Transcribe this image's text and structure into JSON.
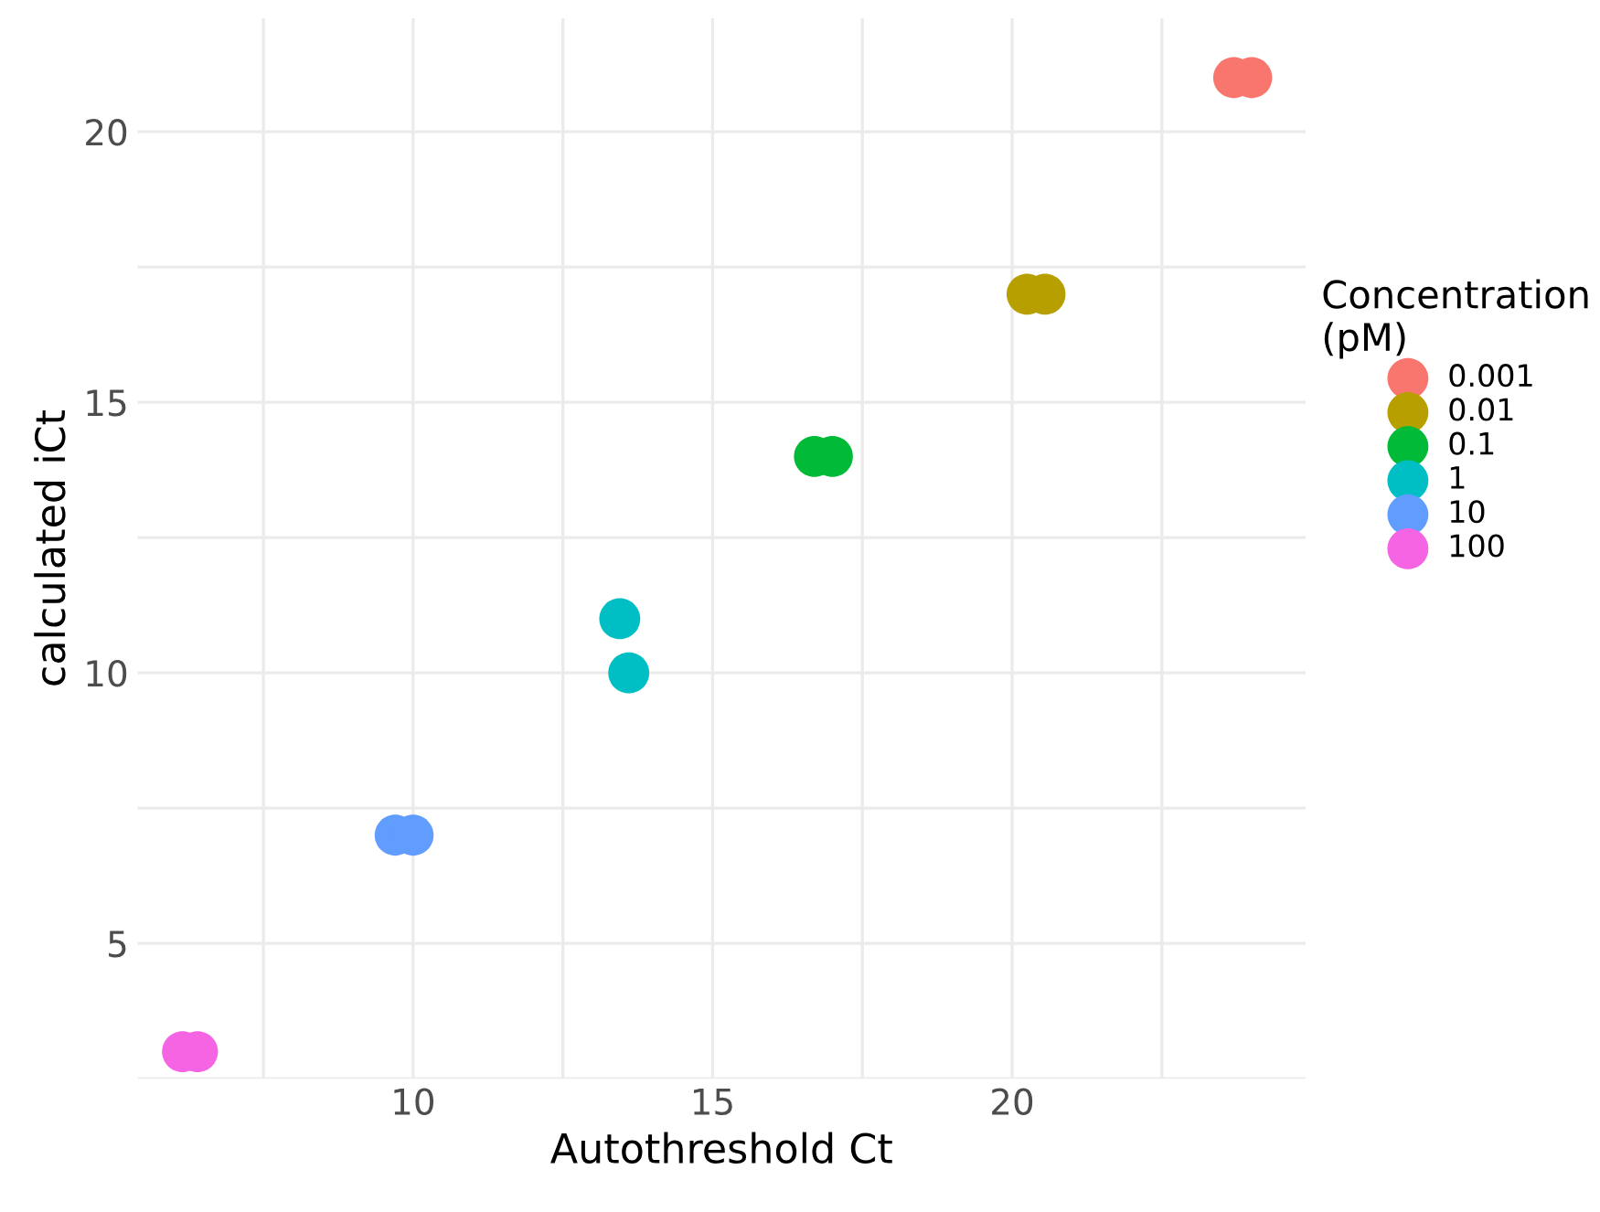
{
  "chart_data": {
    "type": "scatter",
    "xlabel": "Autothreshold Ct",
    "ylabel": "calculated iCt",
    "legend_title": "Concentration\n(pM)",
    "series": [
      {
        "name": "0.001",
        "color": "#f8766d",
        "x": [
          23.7,
          24.0
        ],
        "values": [
          21,
          21
        ]
      },
      {
        "name": "0.01",
        "color": "#b79f00",
        "x": [
          20.25,
          20.55
        ],
        "values": [
          17,
          17
        ]
      },
      {
        "name": "0.1",
        "color": "#00ba38",
        "x": [
          16.7,
          17.0
        ],
        "values": [
          14,
          14
        ]
      },
      {
        "name": "1",
        "color": "#00bfc4",
        "x": [
          13.45,
          13.6
        ],
        "values": [
          11,
          10
        ]
      },
      {
        "name": "10",
        "color": "#619cff",
        "x": [
          9.7,
          10.0
        ],
        "values": [
          7,
          7
        ]
      },
      {
        "name": "100",
        "color": "#f564e3",
        "x": [
          6.15,
          6.4
        ],
        "values": [
          3,
          3
        ]
      }
    ],
    "xlim": [
      5.4,
      24.9
    ],
    "ylim": [
      2.5,
      22.1
    ],
    "xticks": [
      {
        "value": 7.5,
        "label": null
      },
      10,
      {
        "value": 12.5,
        "label": null
      },
      15,
      {
        "value": 17.5,
        "label": null
      },
      20,
      {
        "value": 22.5,
        "label": null
      }
    ],
    "yticks": [
      {
        "value": 2.5,
        "label": null
      },
      5,
      {
        "value": 7.5,
        "label": null
      },
      10,
      {
        "value": 12.5,
        "label": null
      },
      15,
      {
        "value": 17.5,
        "label": null
      },
      20
    ],
    "grid": true,
    "legend": "right",
    "marker": "circle"
  }
}
